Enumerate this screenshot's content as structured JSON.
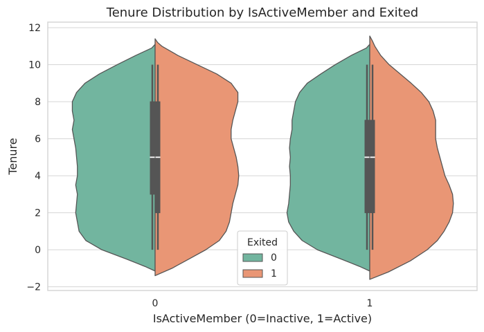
{
  "chart_data": {
    "type": "violin",
    "title": "Tenure Distribution by IsActiveMember and Exited",
    "xlabel": "IsActiveMember (0=Inactive, 1=Active)",
    "ylabel": "Tenure",
    "categories": [
      "0",
      "1"
    ],
    "ylim": [
      -2.2,
      12.3
    ],
    "yticks": [
      -2,
      0,
      2,
      4,
      6,
      8,
      10,
      12
    ],
    "ytick_labels": [
      "−2",
      "0",
      "2",
      "4",
      "6",
      "8",
      "10",
      "12"
    ],
    "grid": true,
    "split": true,
    "legend": {
      "title": "Exited",
      "placement": "lower-center",
      "entries": [
        "0",
        "1"
      ]
    },
    "colors": {
      "exited_0": "#72b59f",
      "exited_1": "#e99675",
      "outline": "#555555",
      "box": "#555555",
      "grid": "#d5d5d5",
      "frame": "#d5d5d5"
    },
    "series": [
      {
        "name": "0",
        "groups": [
          {
            "category": "0",
            "box": {
              "min": 0,
              "q1": 3,
              "median": 5,
              "q3": 8,
              "max": 10
            },
            "profile": [
              [
                -1.15,
                0.0
              ],
              [
                -0.9,
                0.12
              ],
              [
                -0.5,
                0.34
              ],
              [
                0,
                0.63
              ],
              [
                0.5,
                0.82
              ],
              [
                1,
                0.9
              ],
              [
                1.5,
                0.92
              ],
              [
                2,
                0.94
              ],
              [
                2.5,
                0.93
              ],
              [
                3,
                0.92
              ],
              [
                3.5,
                0.94
              ],
              [
                4,
                0.92
              ],
              [
                4.5,
                0.92
              ],
              [
                5,
                0.93
              ],
              [
                5.5,
                0.94
              ],
              [
                6,
                0.96
              ],
              [
                6.5,
                0.98
              ],
              [
                7,
                0.96
              ],
              [
                7.5,
                0.98
              ],
              [
                8,
                0.98
              ],
              [
                8.5,
                0.93
              ],
              [
                9,
                0.83
              ],
              [
                9.5,
                0.66
              ],
              [
                10,
                0.45
              ],
              [
                10.5,
                0.23
              ],
              [
                10.9,
                0.04
              ],
              [
                11.1,
                0.0
              ]
            ]
          },
          {
            "category": "1",
            "box": {
              "min": 0,
              "q1": 2,
              "median": 5,
              "q3": 7,
              "max": 10
            },
            "profile": [
              [
                -1.15,
                0.0
              ],
              [
                -0.9,
                0.12
              ],
              [
                -0.5,
                0.34
              ],
              [
                0,
                0.62
              ],
              [
                0.5,
                0.8
              ],
              [
                1,
                0.9
              ],
              [
                1.5,
                0.96
              ],
              [
                2,
                0.98
              ],
              [
                2.5,
                0.96
              ],
              [
                3,
                0.95
              ],
              [
                3.5,
                0.94
              ],
              [
                4,
                0.94
              ],
              [
                4.5,
                0.95
              ],
              [
                5,
                0.94
              ],
              [
                5.5,
                0.95
              ],
              [
                6,
                0.94
              ],
              [
                6.5,
                0.92
              ],
              [
                7,
                0.92
              ],
              [
                7.5,
                0.9
              ],
              [
                8,
                0.88
              ],
              [
                8.5,
                0.83
              ],
              [
                9,
                0.74
              ],
              [
                9.5,
                0.58
              ],
              [
                10,
                0.41
              ],
              [
                10.5,
                0.22
              ],
              [
                10.9,
                0.04
              ],
              [
                11.1,
                0.0
              ]
            ]
          }
        ]
      },
      {
        "name": "1",
        "groups": [
          {
            "category": "0",
            "box": {
              "min": 0,
              "q1": 2,
              "median": 5,
              "q3": 8,
              "max": 10
            },
            "profile": [
              [
                -1.4,
                0.0
              ],
              [
                -1.0,
                0.2
              ],
              [
                -0.5,
                0.4
              ],
              [
                0,
                0.6
              ],
              [
                0.5,
                0.76
              ],
              [
                1,
                0.84
              ],
              [
                1.5,
                0.88
              ],
              [
                2,
                0.9
              ],
              [
                2.5,
                0.92
              ],
              [
                3,
                0.95
              ],
              [
                3.5,
                0.98
              ],
              [
                4,
                0.99
              ],
              [
                4.5,
                0.98
              ],
              [
                5,
                0.96
              ],
              [
                5.5,
                0.93
              ],
              [
                6,
                0.9
              ],
              [
                6.5,
                0.9
              ],
              [
                7,
                0.92
              ],
              [
                7.5,
                0.95
              ],
              [
                8,
                0.98
              ],
              [
                8.5,
                0.98
              ],
              [
                9,
                0.9
              ],
              [
                9.5,
                0.73
              ],
              [
                10,
                0.5
              ],
              [
                10.5,
                0.27
              ],
              [
                11,
                0.08
              ],
              [
                11.2,
                0.03
              ],
              [
                11.4,
                0.0
              ]
            ]
          },
          {
            "category": "1",
            "box": {
              "min": 0,
              "q1": 2,
              "median": 5,
              "q3": 7,
              "max": 10
            },
            "profile": [
              [
                -1.6,
                0.0
              ],
              [
                -1.2,
                0.22
              ],
              [
                -0.6,
                0.48
              ],
              [
                0,
                0.68
              ],
              [
                0.5,
                0.8
              ],
              [
                1,
                0.88
              ],
              [
                1.5,
                0.94
              ],
              [
                2,
                0.98
              ],
              [
                2.5,
                0.99
              ],
              [
                3,
                0.98
              ],
              [
                3.5,
                0.94
              ],
              [
                4,
                0.89
              ],
              [
                4.5,
                0.86
              ],
              [
                5,
                0.83
              ],
              [
                5.5,
                0.8
              ],
              [
                6,
                0.78
              ],
              [
                6.5,
                0.78
              ],
              [
                7,
                0.78
              ],
              [
                7.5,
                0.75
              ],
              [
                8,
                0.7
              ],
              [
                8.5,
                0.61
              ],
              [
                9,
                0.49
              ],
              [
                9.5,
                0.36
              ],
              [
                10,
                0.23
              ],
              [
                10.5,
                0.13
              ],
              [
                11,
                0.06
              ],
              [
                11.3,
                0.03
              ],
              [
                11.55,
                0.0
              ]
            ]
          }
        ]
      }
    ]
  }
}
